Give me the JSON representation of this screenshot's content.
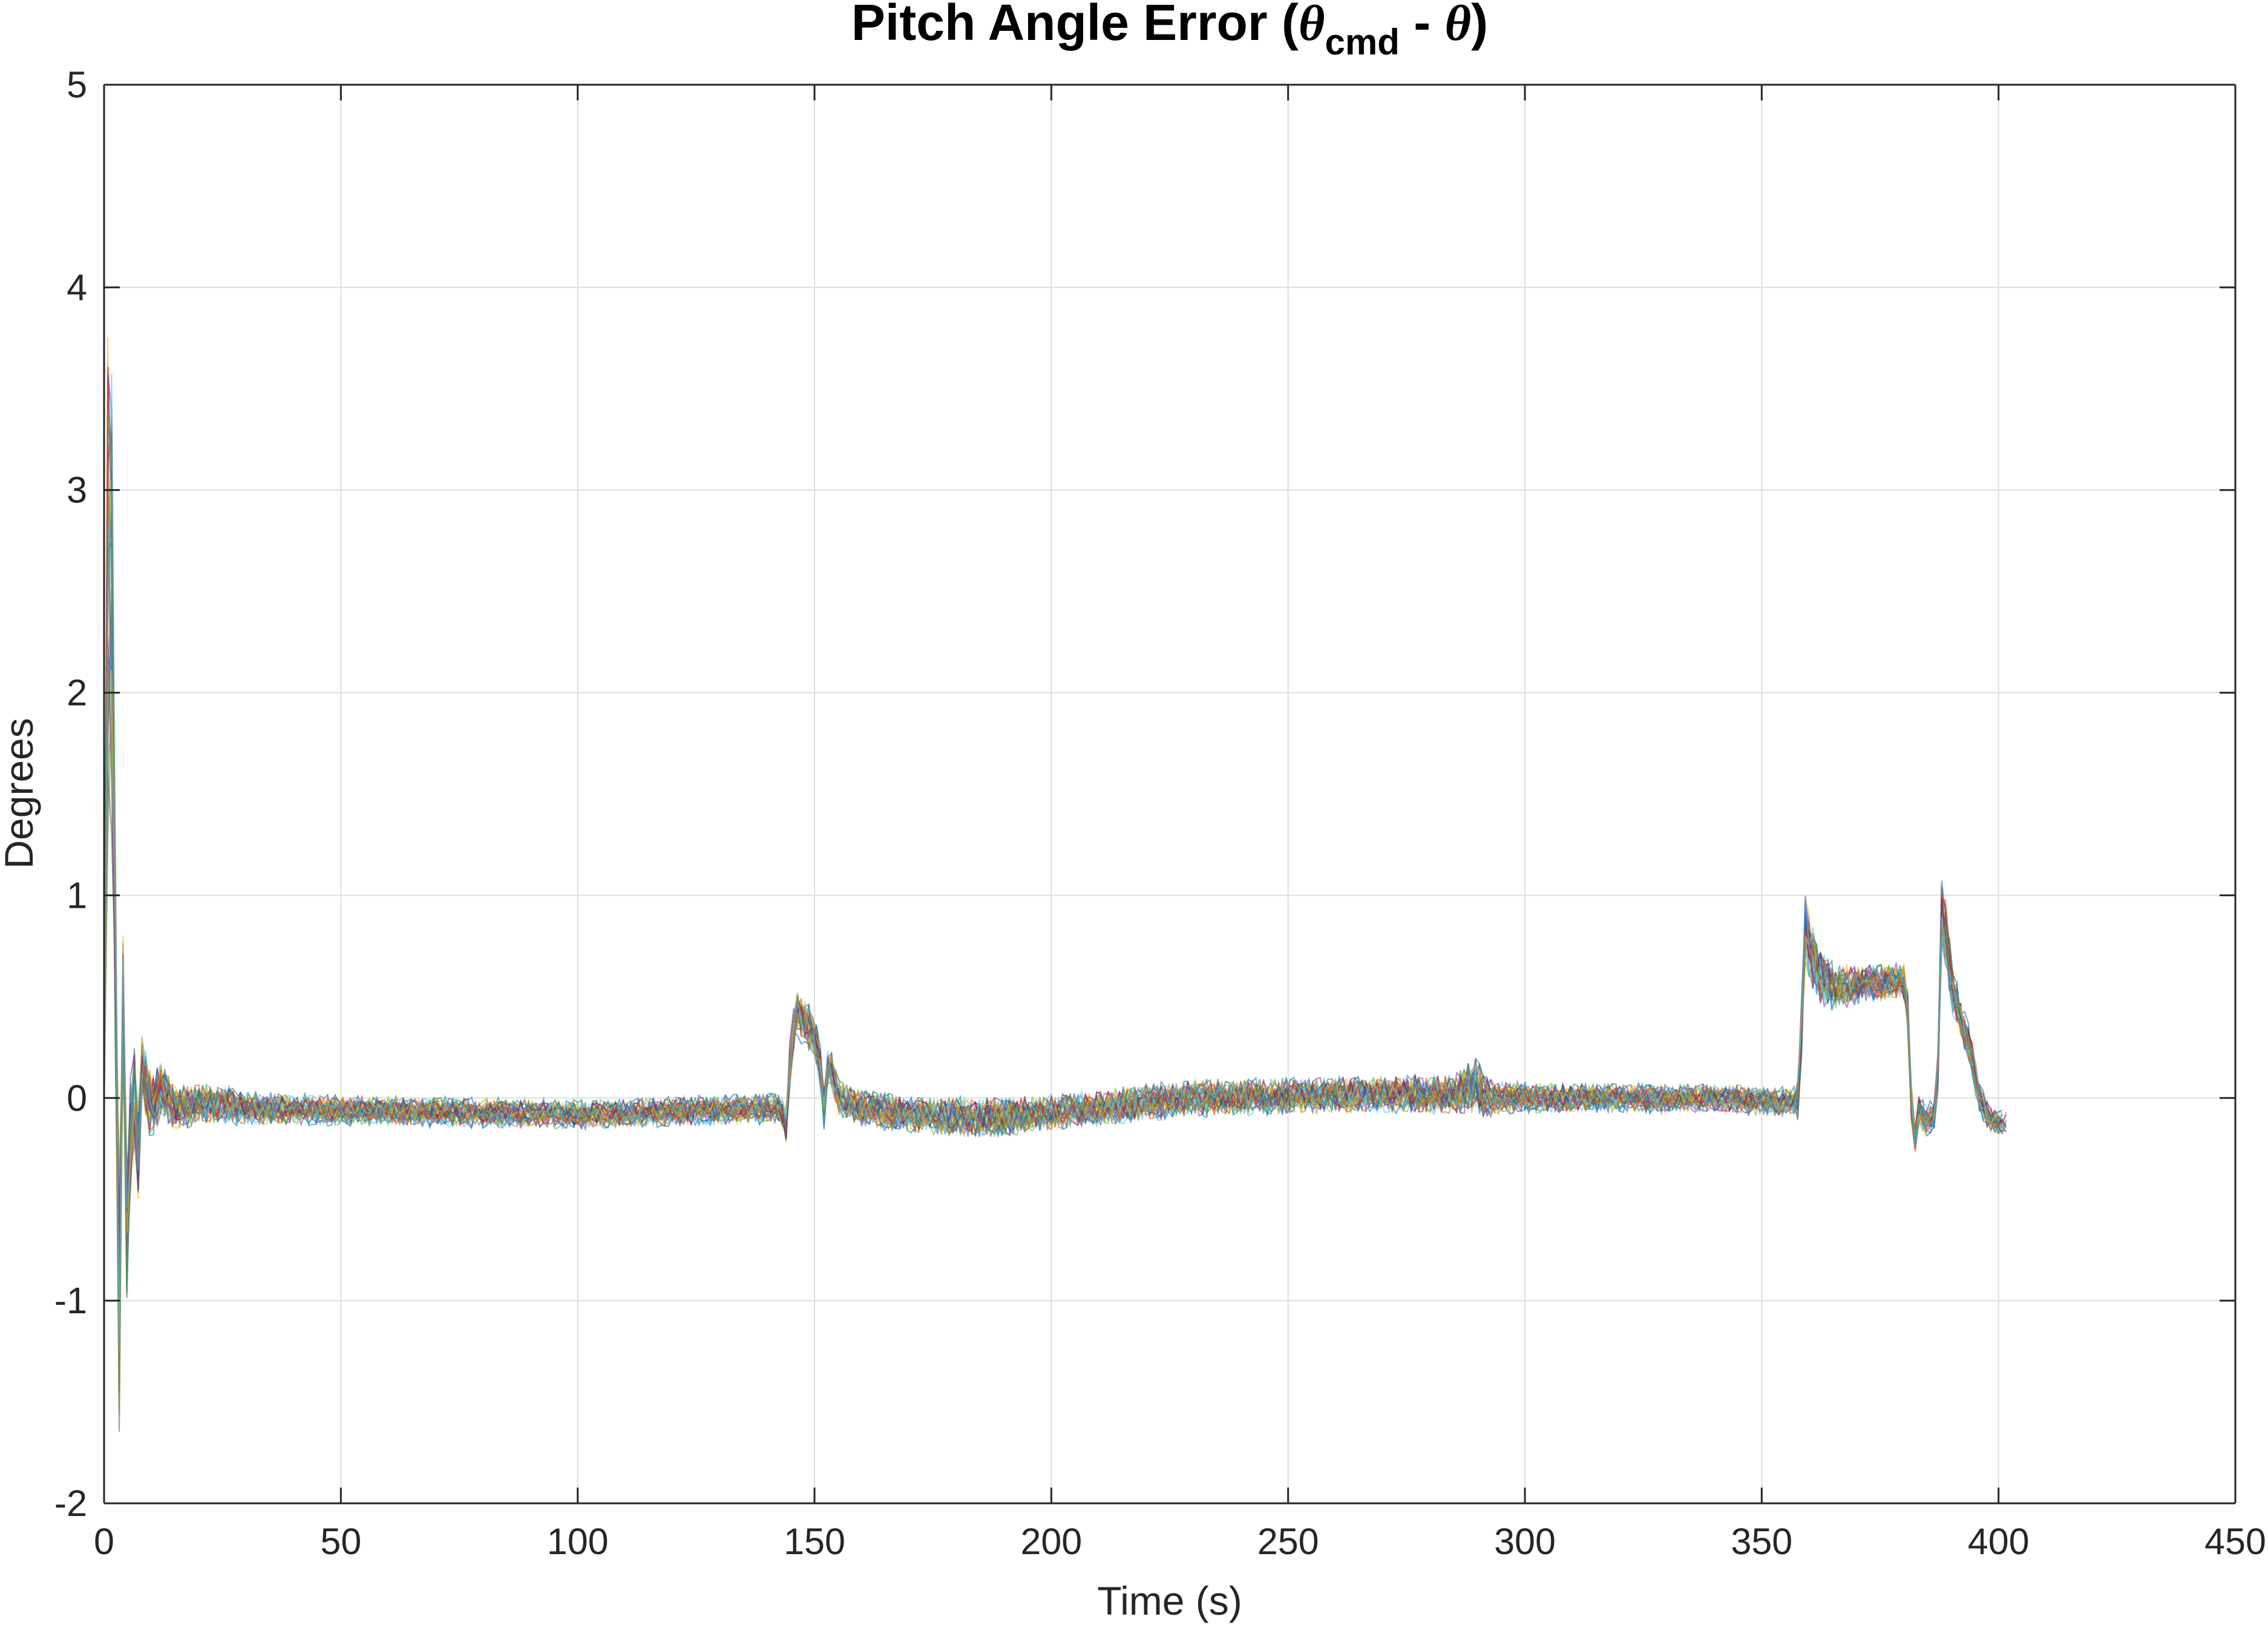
{
  "chart_data": {
    "type": "line",
    "title_parts": {
      "prefix": "Pitch Angle Error (",
      "theta": "θ",
      "subscript": "cmd",
      "middle": " - ",
      "theta2": "θ",
      "suffix": ")"
    },
    "xlabel": "Time (s)",
    "ylabel": "Degrees",
    "xlim": [
      0,
      450
    ],
    "ylim": [
      -2,
      5
    ],
    "xticks": [
      0,
      50,
      100,
      150,
      200,
      250,
      300,
      350,
      400,
      450
    ],
    "yticks": [
      -2,
      -1,
      0,
      1,
      2,
      3,
      4,
      5
    ],
    "xtick_labels": [
      "0",
      "50",
      "100",
      "150",
      "200",
      "250",
      "300",
      "350",
      "400",
      "450"
    ],
    "ytick_labels": [
      "-2",
      "-1",
      "0",
      "1",
      "2",
      "3",
      "4",
      "5"
    ],
    "grid": true,
    "legend": "none",
    "series_description": "Many overlapping Monte Carlo runs (multicolored thin lines)",
    "colors": [
      "#0072BD",
      "#D95319",
      "#EDB120",
      "#7E2F8E",
      "#77AC30",
      "#4DBEEE",
      "#A2142F",
      "#2F6F5E"
    ],
    "envelope": {
      "t": [
        0,
        1,
        2,
        3,
        4,
        5,
        6,
        7,
        8,
        10,
        12,
        15,
        20,
        30,
        50,
        100,
        143,
        144,
        145,
        146,
        148,
        150,
        151,
        152,
        153,
        155,
        160,
        170,
        185,
        200,
        230,
        270,
        285,
        290,
        292,
        295,
        310,
        340,
        357,
        358,
        359,
        360,
        362,
        365,
        370,
        375,
        380,
        381,
        382,
        383,
        385,
        387,
        388,
        389,
        390,
        392,
        394,
        396,
        398,
        400,
        402
      ],
      "mean": [
        0,
        3.2,
        2.0,
        -1.4,
        0.5,
        -0.9,
        0.3,
        -0.4,
        0.15,
        -0.05,
        0.05,
        -0.05,
        -0.02,
        -0.05,
        -0.06,
        -0.08,
        -0.05,
        -0.15,
        0.25,
        0.42,
        0.38,
        0.3,
        0.2,
        -0.05,
        0.2,
        0.0,
        -0.05,
        -0.08,
        -0.1,
        -0.07,
        0.0,
        0.02,
        0.02,
        0.06,
        0.0,
        0.0,
        0.0,
        0.0,
        -0.02,
        0.0,
        0.85,
        0.75,
        0.6,
        0.55,
        0.56,
        0.57,
        0.58,
        0.4,
        -0.3,
        -0.05,
        -0.12,
        -0.05,
        0.9,
        0.8,
        0.55,
        0.4,
        0.25,
        0.0,
        -0.1,
        -0.12,
        -0.12
      ],
      "spread": [
        0.1,
        0.8,
        0.6,
        0.4,
        0.3,
        0.25,
        0.25,
        0.2,
        0.15,
        0.15,
        0.12,
        0.1,
        0.08,
        0.06,
        0.05,
        0.05,
        0.05,
        0.08,
        0.1,
        0.1,
        0.1,
        0.08,
        0.08,
        0.08,
        0.07,
        0.07,
        0.07,
        0.07,
        0.08,
        0.07,
        0.07,
        0.07,
        0.08,
        0.12,
        0.08,
        0.06,
        0.05,
        0.05,
        0.05,
        0.1,
        0.15,
        0.15,
        0.12,
        0.1,
        0.08,
        0.07,
        0.07,
        0.1,
        0.08,
        0.06,
        0.06,
        0.08,
        0.15,
        0.15,
        0.1,
        0.08,
        0.08,
        0.05,
        0.05,
        0.04,
        0.04
      ]
    },
    "run_count": 30
  }
}
